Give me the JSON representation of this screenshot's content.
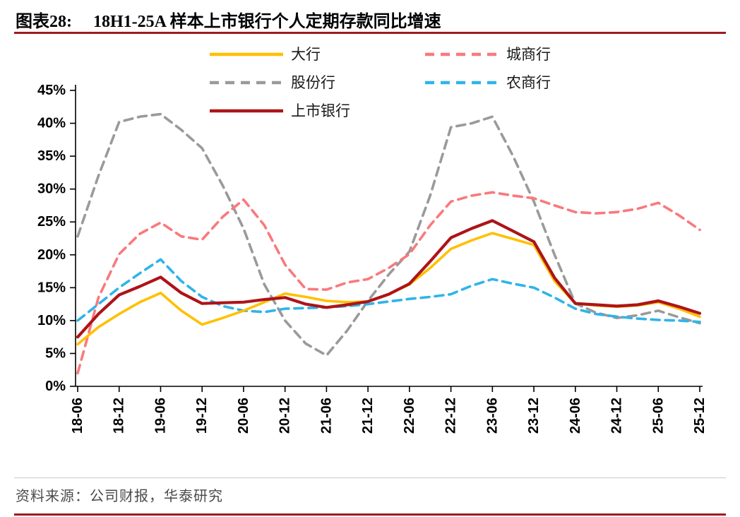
{
  "header": {
    "label": "图表28:",
    "title": "18H1-25A 样本上市银行个人定期存款同比增速"
  },
  "footer": {
    "source": "资料来源：公司财报，华泰研究"
  },
  "colors": {
    "rule_red": "#9E1B1E",
    "divider_gray": "#C9C9C9"
  },
  "chart_data": {
    "type": "line",
    "figure_label": "图表28:",
    "title": "18H1-25A 样本上市银行个人定期存款同比增速",
    "legend_position": "top-center",
    "grid": false,
    "ylim": [
      0,
      45
    ],
    "ytick_step": 5,
    "y_tick_labels": [
      "0%",
      "5%",
      "10%",
      "15%",
      "20%",
      "25%",
      "30%",
      "35%",
      "40%",
      "45%"
    ],
    "x_frequency": "quarterly (values between semi-annual labels estimated from line vertices)",
    "x": [
      "18-06",
      "18-09",
      "18-12",
      "19-03",
      "19-06",
      "19-09",
      "19-12",
      "20-03",
      "20-06",
      "20-09",
      "20-12",
      "21-03",
      "21-06",
      "21-09",
      "21-12",
      "22-03",
      "22-06",
      "22-09",
      "22-12",
      "23-03",
      "23-06",
      "23-09",
      "23-12",
      "24-03",
      "24-06",
      "24-09",
      "24-12",
      "25-03",
      "25-06",
      "25-09",
      "25-12"
    ],
    "x_labels": [
      "18-06",
      "18-12",
      "19-06",
      "19-12",
      "20-06",
      "20-12",
      "21-06",
      "21-12",
      "22-06",
      "22-12",
      "23-06",
      "23-12",
      "24-06",
      "24-12",
      "25-06",
      "25-12"
    ],
    "series": [
      {
        "id": "large-banks",
        "name": "大行",
        "color": "#FFC000",
        "line_style": "solid",
        "values": [
          6.4,
          9.0,
          11.0,
          12.8,
          14.2,
          11.5,
          9.4,
          10.4,
          11.5,
          12.8,
          14.1,
          13.6,
          13.0,
          12.8,
          12.9,
          14.0,
          15.5,
          18.0,
          20.9,
          22.2,
          23.3,
          22.4,
          21.5,
          16.0,
          12.6,
          12.3,
          12.1,
          12.3,
          12.8,
          11.8,
          10.6
        ]
      },
      {
        "id": "city-commercial-banks",
        "name": "城商行",
        "color": "#F9797C",
        "line_style": "dashed",
        "values": [
          2.0,
          13.5,
          20.1,
          23.2,
          24.9,
          22.8,
          22.3,
          25.8,
          28.4,
          24.5,
          18.5,
          14.8,
          14.7,
          15.8,
          16.3,
          18.0,
          20.1,
          24.5,
          28.1,
          29.0,
          29.5,
          29.0,
          28.6,
          27.5,
          26.5,
          26.3,
          26.5,
          27.0,
          27.9,
          26.0,
          23.8
        ]
      },
      {
        "id": "joint-stock-banks",
        "name": "股份行",
        "color": "#9A9A9A",
        "line_style": "dashed",
        "values": [
          22.8,
          32.0,
          40.2,
          41.0,
          41.4,
          39.0,
          36.2,
          30.5,
          24.0,
          15.5,
          10.0,
          6.5,
          4.7,
          8.5,
          13.0,
          17.0,
          20.5,
          29.0,
          39.4,
          40.0,
          41.0,
          35.0,
          28.1,
          20.0,
          12.6,
          11.2,
          10.4,
          10.8,
          11.5,
          10.5,
          9.6
        ]
      },
      {
        "id": "rural-commercial-banks",
        "name": "农商行",
        "color": "#2FB4E9",
        "line_style": "dashed",
        "values": [
          10.0,
          12.5,
          15.0,
          17.2,
          19.3,
          16.0,
          13.6,
          12.2,
          11.5,
          11.3,
          11.8,
          11.9,
          12.0,
          12.2,
          12.5,
          12.9,
          13.3,
          13.6,
          14.0,
          15.3,
          16.3,
          15.6,
          15.0,
          13.5,
          11.8,
          11.0,
          10.6,
          10.3,
          10.1,
          10.0,
          9.8
        ]
      },
      {
        "id": "listed-banks",
        "name": "上市银行",
        "color": "#AD1418",
        "line_style": "solid",
        "values": [
          7.5,
          11.0,
          13.9,
          15.2,
          16.6,
          14.2,
          12.6,
          12.7,
          12.8,
          13.2,
          13.5,
          12.5,
          12.0,
          12.4,
          12.9,
          14.0,
          15.6,
          19.0,
          22.6,
          24.0,
          25.2,
          23.6,
          22.0,
          16.5,
          12.6,
          12.4,
          12.2,
          12.4,
          13.0,
          12.1,
          11.1
        ]
      }
    ]
  }
}
